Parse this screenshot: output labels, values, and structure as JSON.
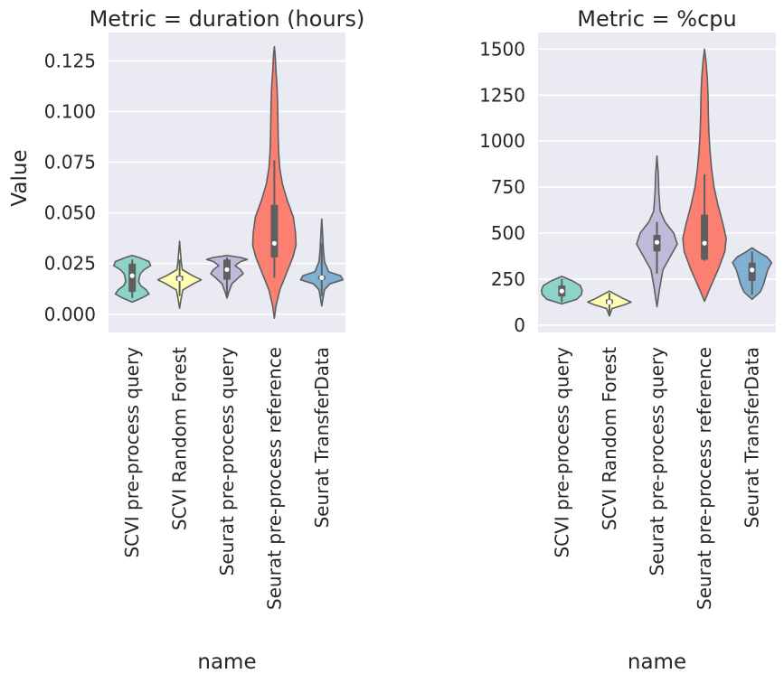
{
  "chart_data": [
    {
      "type": "violin",
      "title": "Metric = duration (hours)",
      "xlabel": "name",
      "ylabel": "Value",
      "ylim": [
        -0.009,
        0.139
      ],
      "yticks": [
        0.0,
        0.025,
        0.05,
        0.075,
        0.1,
        0.125
      ],
      "ytick_labels": [
        "0.000",
        "0.025",
        "0.050",
        "0.075",
        "0.100",
        "0.125"
      ],
      "grid": true,
      "colors": [
        "#8dd3c7",
        "#ffffb3",
        "#bebada",
        "#fb8072",
        "#80b1d3"
      ],
      "categories": [
        {
          "name": "SCVI pre-process query",
          "q1": 0.011,
          "median": 0.019,
          "q3": 0.025,
          "whisker_low": 0.008,
          "whisker_high": 0.027,
          "profile": [
            [
              0.006,
              0.0
            ],
            [
              0.008,
              0.35
            ],
            [
              0.01,
              0.62
            ],
            [
              0.012,
              0.52
            ],
            [
              0.014,
              0.32
            ],
            [
              0.016,
              0.24
            ],
            [
              0.018,
              0.26
            ],
            [
              0.02,
              0.3
            ],
            [
              0.022,
              0.44
            ],
            [
              0.024,
              0.68
            ],
            [
              0.026,
              0.62
            ],
            [
              0.028,
              0.25
            ],
            [
              0.029,
              0.0
            ]
          ]
        },
        {
          "name": "SCVI Random Forest",
          "q1": 0.0165,
          "median": 0.0175,
          "q3": 0.019,
          "whisker_low": 0.009,
          "whisker_high": 0.027,
          "profile": [
            [
              0.003,
              0.0
            ],
            [
              0.008,
              0.06
            ],
            [
              0.012,
              0.12
            ],
            [
              0.015,
              0.5
            ],
            [
              0.017,
              0.8
            ],
            [
              0.019,
              0.48
            ],
            [
              0.022,
              0.1
            ],
            [
              0.026,
              0.06
            ],
            [
              0.031,
              0.03
            ],
            [
              0.036,
              0.0
            ]
          ]
        },
        {
          "name": "Seurat pre-process query",
          "q1": 0.017,
          "median": 0.022,
          "q3": 0.027,
          "whisker_low": 0.009,
          "whisker_high": 0.028,
          "profile": [
            [
              0.008,
              0.0
            ],
            [
              0.011,
              0.07
            ],
            [
              0.015,
              0.18
            ],
            [
              0.018,
              0.42
            ],
            [
              0.02,
              0.6
            ],
            [
              0.022,
              0.5
            ],
            [
              0.024,
              0.3
            ],
            [
              0.026,
              0.5
            ],
            [
              0.027,
              0.75
            ],
            [
              0.028,
              0.5
            ],
            [
              0.029,
              0.0
            ]
          ]
        },
        {
          "name": "Seurat pre-process reference",
          "q1": 0.028,
          "median": 0.035,
          "q3": 0.054,
          "whisker_low": 0.018,
          "whisker_high": 0.076,
          "profile": [
            [
              -0.002,
              0.0
            ],
            [
              0.004,
              0.06
            ],
            [
              0.012,
              0.2
            ],
            [
              0.02,
              0.44
            ],
            [
              0.028,
              0.68
            ],
            [
              0.034,
              0.8
            ],
            [
              0.04,
              0.78
            ],
            [
              0.048,
              0.7
            ],
            [
              0.056,
              0.48
            ],
            [
              0.064,
              0.3
            ],
            [
              0.072,
              0.2
            ],
            [
              0.08,
              0.16
            ],
            [
              0.088,
              0.14
            ],
            [
              0.096,
              0.13
            ],
            [
              0.104,
              0.12
            ],
            [
              0.112,
              0.1
            ],
            [
              0.12,
              0.06
            ],
            [
              0.128,
              0.03
            ],
            [
              0.132,
              0.0
            ]
          ]
        },
        {
          "name": "Seurat TransferData",
          "q1": 0.017,
          "median": 0.018,
          "q3": 0.019,
          "whisker_low": 0.009,
          "whisker_high": 0.035,
          "profile": [
            [
              0.004,
              0.0
            ],
            [
              0.008,
              0.05
            ],
            [
              0.012,
              0.1
            ],
            [
              0.015,
              0.3
            ],
            [
              0.017,
              0.78
            ],
            [
              0.019,
              0.7
            ],
            [
              0.021,
              0.25
            ],
            [
              0.026,
              0.1
            ],
            [
              0.032,
              0.06
            ],
            [
              0.04,
              0.03
            ],
            [
              0.047,
              0.0
            ]
          ]
        }
      ]
    },
    {
      "type": "violin",
      "title": "Metric = %cpu",
      "xlabel": "name",
      "ylabel": "",
      "ylim": [
        -40,
        1590
      ],
      "yticks": [
        0,
        250,
        500,
        750,
        1000,
        1250,
        1500
      ],
      "ytick_labels": [
        "0",
        "250",
        "500",
        "750",
        "1000",
        "1250",
        "1500"
      ],
      "grid": true,
      "colors": [
        "#8dd3c7",
        "#ffffb3",
        "#bebada",
        "#fb8072",
        "#80b1d3"
      ],
      "categories": [
        {
          "name": "SCVI pre-process query",
          "q1": 155,
          "median": 185,
          "q3": 215,
          "whisker_low": 125,
          "whisker_high": 250,
          "profile": [
            [
              115,
              0.0
            ],
            [
              140,
              0.55
            ],
            [
              165,
              0.72
            ],
            [
              190,
              0.75
            ],
            [
              215,
              0.68
            ],
            [
              240,
              0.4
            ],
            [
              265,
              0.0
            ]
          ]
        },
        {
          "name": "SCVI Random Forest",
          "q1": 115,
          "median": 125,
          "q3": 140,
          "whisker_low": 60,
          "whisker_high": 175,
          "profile": [
            [
              50,
              0.0
            ],
            [
              90,
              0.1
            ],
            [
              110,
              0.55
            ],
            [
              125,
              0.8
            ],
            [
              145,
              0.5
            ],
            [
              170,
              0.18
            ],
            [
              185,
              0.0
            ]
          ]
        },
        {
          "name": "Seurat pre-process query",
          "q1": 400,
          "median": 450,
          "q3": 490,
          "whisker_low": 280,
          "whisker_high": 560,
          "profile": [
            [
              100,
              0.0
            ],
            [
              200,
              0.1
            ],
            [
              300,
              0.22
            ],
            [
              380,
              0.52
            ],
            [
              440,
              0.75
            ],
            [
              500,
              0.62
            ],
            [
              560,
              0.3
            ],
            [
              620,
              0.12
            ],
            [
              720,
              0.07
            ],
            [
              820,
              0.05
            ],
            [
              920,
              0.0
            ]
          ]
        },
        {
          "name": "Seurat pre-process reference",
          "q1": 355,
          "median": 445,
          "q3": 600,
          "whisker_low": 350,
          "whisker_high": 820,
          "profile": [
            [
              130,
              0.0
            ],
            [
              200,
              0.2
            ],
            [
              300,
              0.5
            ],
            [
              400,
              0.75
            ],
            [
              470,
              0.8
            ],
            [
              550,
              0.68
            ],
            [
              650,
              0.5
            ],
            [
              750,
              0.35
            ],
            [
              850,
              0.26
            ],
            [
              950,
              0.2
            ],
            [
              1050,
              0.16
            ],
            [
              1150,
              0.14
            ],
            [
              1250,
              0.13
            ],
            [
              1350,
              0.1
            ],
            [
              1440,
              0.05
            ],
            [
              1500,
              0.0
            ]
          ]
        },
        {
          "name": "Seurat TransferData",
          "q1": 240,
          "median": 300,
          "q3": 340,
          "whisker_low": 165,
          "whisker_high": 400,
          "profile": [
            [
              140,
              0.0
            ],
            [
              180,
              0.3
            ],
            [
              220,
              0.42
            ],
            [
              260,
              0.5
            ],
            [
              300,
              0.58
            ],
            [
              340,
              0.72
            ],
            [
              370,
              0.55
            ],
            [
              400,
              0.2
            ],
            [
              420,
              0.0
            ]
          ]
        }
      ]
    }
  ]
}
